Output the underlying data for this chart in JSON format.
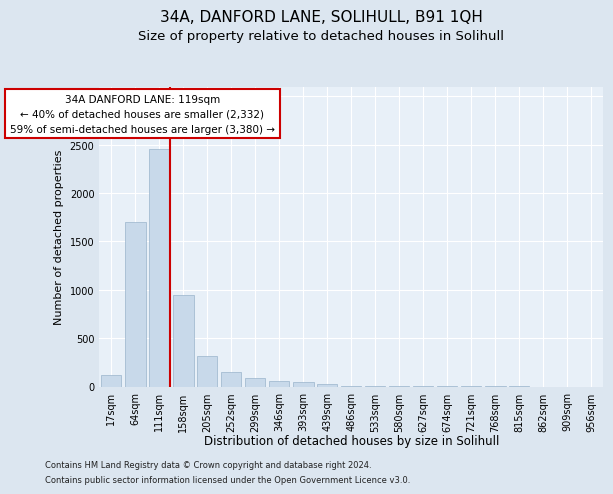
{
  "title": "34A, DANFORD LANE, SOLIHULL, B91 1QH",
  "subtitle": "Size of property relative to detached houses in Solihull",
  "xlabel": "Distribution of detached houses by size in Solihull",
  "ylabel": "Number of detached properties",
  "footnote1": "Contains HM Land Registry data © Crown copyright and database right 2024.",
  "footnote2": "Contains public sector information licensed under the Open Government Licence v3.0.",
  "bin_labels": [
    "17sqm",
    "64sqm",
    "111sqm",
    "158sqm",
    "205sqm",
    "252sqm",
    "299sqm",
    "346sqm",
    "393sqm",
    "439sqm",
    "486sqm",
    "533sqm",
    "580sqm",
    "627sqm",
    "674sqm",
    "721sqm",
    "768sqm",
    "815sqm",
    "862sqm",
    "909sqm",
    "956sqm"
  ],
  "bar_values": [
    120,
    1700,
    2450,
    950,
    320,
    150,
    85,
    60,
    50,
    25,
    10,
    8,
    5,
    3,
    2,
    1,
    1,
    1,
    0,
    0,
    0
  ],
  "bar_color": "#c8d9ea",
  "bar_edgecolor": "#9ab4cc",
  "vline_bar_index": 2,
  "annotation_title": "34A DANFORD LANE: 119sqm",
  "annotation_line1": "← 40% of detached houses are smaller (2,332)",
  "annotation_line2": "59% of semi-detached houses are larger (3,380) →",
  "vline_color": "#cc0000",
  "ann_box_facecolor": "white",
  "ann_box_edgecolor": "#cc0000",
  "ylim": [
    0,
    3100
  ],
  "yticks": [
    0,
    500,
    1000,
    1500,
    2000,
    2500,
    3000
  ],
  "bg_color": "#dce6f0",
  "plot_bg_color": "#e8f0f8",
  "grid_color": "#ffffff",
  "title_fontsize": 11,
  "subtitle_fontsize": 9.5,
  "ylabel_fontsize": 8,
  "xlabel_fontsize": 8.5,
  "tick_fontsize": 7,
  "ann_fontsize": 7.5,
  "footnote_fontsize": 6
}
